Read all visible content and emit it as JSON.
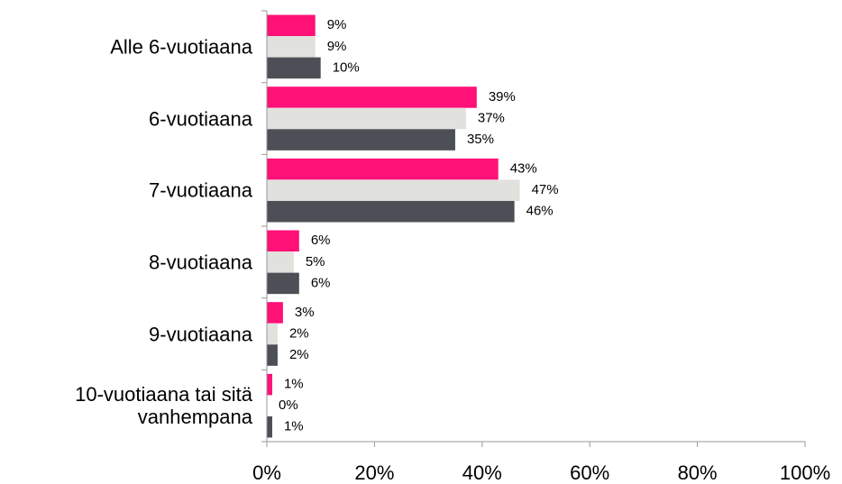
{
  "chart_data": {
    "type": "bar",
    "orientation": "horizontal",
    "categories": [
      "Alle 6-vuotiaana",
      "6-vuotiaana",
      "7-vuotiaana",
      "8-vuotiaana",
      "9-vuotiaana",
      "10-vuotiaana tai sitä vanhempana"
    ],
    "series": [
      {
        "color": "#ff1178",
        "values": [
          9,
          39,
          43,
          6,
          3,
          1
        ],
        "value_labels": [
          "9%",
          "39%",
          "43%",
          "6%",
          "3%",
          "1%"
        ]
      },
      {
        "color": "#e1e1dd",
        "values": [
          9,
          37,
          47,
          5,
          2,
          0
        ],
        "value_labels": [
          "9%",
          "37%",
          "47%",
          "5%",
          "2%",
          "0%"
        ]
      },
      {
        "color": "#4c5056",
        "values": [
          10,
          35,
          46,
          6,
          2,
          1
        ],
        "value_labels": [
          "10%",
          "35%",
          "46%",
          "6%",
          "2%",
          "1%"
        ]
      }
    ],
    "xlim": [
      0,
      100
    ],
    "xticks": [
      {
        "value": 0,
        "label": "0%"
      },
      {
        "value": 20,
        "label": "20%"
      },
      {
        "value": 40,
        "label": "40%"
      },
      {
        "value": 60,
        "label": "60%"
      },
      {
        "value": 80,
        "label": "80%"
      },
      {
        "value": 100,
        "label": "100%"
      }
    ],
    "grid": false
  }
}
